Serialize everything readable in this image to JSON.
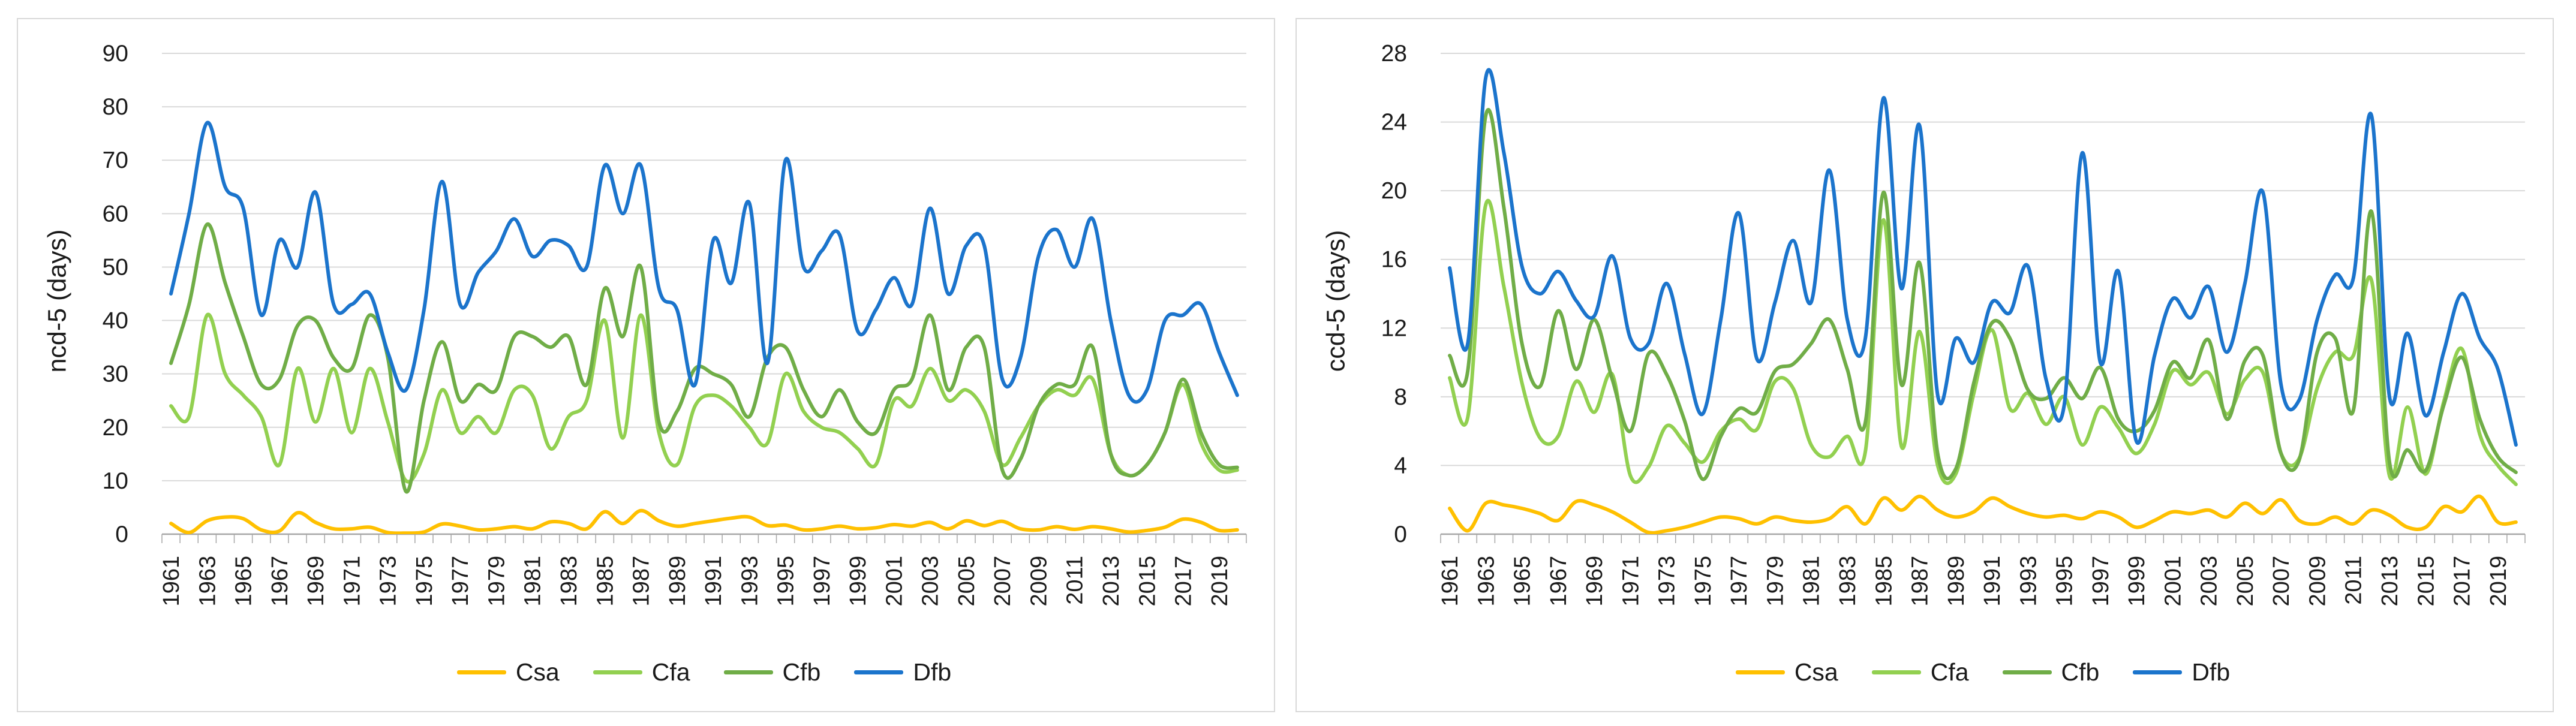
{
  "figure": {
    "background": "#ffffff",
    "panel_border_color": "#d9d9d9"
  },
  "style": {
    "grid_color": "#d9d9d9",
    "axis_color": "#a6a6a6",
    "text_color": "#1a1a1a",
    "line_width": 6
  },
  "legend": {
    "position": "bottom",
    "entries": [
      {
        "label": "Csa",
        "color": "#FFC000"
      },
      {
        "label": "Cfa",
        "color": "#92D050"
      },
      {
        "label": "Cfb",
        "color": "#70AD47"
      },
      {
        "label": "Dfb",
        "color": "#1B74CC"
      }
    ]
  },
  "chart_data": [
    {
      "type": "line",
      "smoothed": true,
      "title": "",
      "y_label": "ncd-5 (days)",
      "xlabel": "",
      "ylim": [
        0,
        90
      ],
      "ytick_step": 10,
      "x_tick_label_step": 2,
      "grid": true,
      "years": [
        1961,
        1962,
        1963,
        1964,
        1965,
        1966,
        1967,
        1968,
        1969,
        1970,
        1971,
        1972,
        1973,
        1974,
        1975,
        1976,
        1977,
        1978,
        1979,
        1980,
        1981,
        1982,
        1983,
        1984,
        1985,
        1986,
        1987,
        1988,
        1989,
        1990,
        1991,
        1992,
        1993,
        1994,
        1995,
        1996,
        1997,
        1998,
        1999,
        2000,
        2001,
        2002,
        2003,
        2004,
        2005,
        2006,
        2007,
        2008,
        2009,
        2010,
        2011,
        2012,
        2013,
        2014,
        2015,
        2016,
        2017,
        2018,
        2019,
        2020
      ],
      "series": [
        {
          "name": "Csa",
          "color": "#FFC000",
          "values": [
            2,
            0.3,
            2.5,
            3.2,
            2.9,
            0.8,
            0.6,
            4,
            2.2,
            1,
            1,
            1.3,
            0.3,
            0.2,
            0.4,
            1.9,
            1.5,
            0.8,
            1,
            1.4,
            1,
            2.3,
            2,
            1,
            4.2,
            2,
            4.4,
            2.5,
            1.5,
            2,
            2.5,
            3,
            3.2,
            1.6,
            1.7,
            0.8,
            1,
            1.5,
            1,
            1.2,
            1.8,
            1.5,
            2.2,
            1,
            2.5,
            1.6,
            2.4,
            1,
            0.8,
            1.4,
            0.9,
            1.4,
            1,
            0.4,
            0.7,
            1.3,
            2.8,
            2.2,
            0.7,
            0.8
          ]
        },
        {
          "name": "Cfa",
          "color": "#92D050",
          "values": [
            24,
            22,
            41,
            30,
            26,
            22,
            13,
            31,
            21,
            31,
            19,
            31,
            21,
            10,
            15,
            27,
            19,
            22,
            19,
            27,
            26,
            16,
            22,
            25,
            40,
            18,
            41,
            19,
            13,
            24,
            26,
            24,
            20,
            17,
            30,
            23,
            20,
            19,
            16,
            13,
            25,
            24,
            31,
            25,
            27,
            23,
            13,
            18,
            24,
            27,
            26,
            29,
            15,
            11,
            13,
            19,
            28,
            17,
            12,
            12
          ]
        },
        {
          "name": "Cfb",
          "color": "#70AD47",
          "values": [
            32,
            43,
            58,
            47,
            37,
            28,
            29,
            39,
            40,
            33,
            31,
            41,
            33,
            8,
            25,
            36,
            25,
            28,
            27,
            37,
            37,
            35,
            37,
            28,
            46,
            37,
            50,
            21,
            23,
            31,
            30,
            28,
            22,
            33,
            35,
            27,
            22,
            27,
            21,
            19,
            27,
            29,
            41,
            27,
            35,
            35,
            12,
            14,
            24,
            28,
            28,
            35,
            15,
            11,
            13,
            19,
            29,
            19,
            13,
            12.5
          ]
        },
        {
          "name": "Dfb",
          "color": "#1B74CC",
          "values": [
            45,
            60,
            77,
            65,
            61,
            41,
            55,
            50,
            64,
            43,
            43,
            45,
            34,
            27,
            42,
            66,
            43,
            49,
            53,
            59,
            52,
            55,
            54,
            50,
            69,
            60,
            69,
            46,
            42,
            28,
            55,
            47,
            62,
            32,
            70,
            50,
            53,
            56,
            38,
            42,
            48,
            43,
            61,
            45,
            54,
            54,
            29,
            33,
            52,
            57,
            50,
            59,
            40,
            26,
            27,
            40,
            41,
            43,
            34,
            26
          ]
        }
      ]
    },
    {
      "type": "line",
      "smoothed": true,
      "title": "",
      "y_label": "ccd-5 (days)",
      "xlabel": "",
      "ylim": [
        0,
        28
      ],
      "ytick_step": 4,
      "x_tick_label_step": 2,
      "grid": true,
      "years": [
        1961,
        1962,
        1963,
        1964,
        1965,
        1966,
        1967,
        1968,
        1969,
        1970,
        1971,
        1972,
        1973,
        1974,
        1975,
        1976,
        1977,
        1978,
        1979,
        1980,
        1981,
        1982,
        1983,
        1984,
        1985,
        1986,
        1987,
        1988,
        1989,
        1990,
        1991,
        1992,
        1993,
        1994,
        1995,
        1996,
        1997,
        1998,
        1999,
        2000,
        2001,
        2002,
        2003,
        2004,
        2005,
        2006,
        2007,
        2008,
        2009,
        2010,
        2011,
        2012,
        2013,
        2014,
        2015,
        2016,
        2017,
        2018,
        2019,
        2020
      ],
      "series": [
        {
          "name": "Csa",
          "color": "#FFC000",
          "values": [
            1.5,
            0.2,
            1.8,
            1.7,
            1.5,
            1.2,
            0.8,
            1.9,
            1.7,
            1.3,
            0.7,
            0.1,
            0.2,
            0.4,
            0.7,
            1,
            0.9,
            0.6,
            1,
            0.8,
            0.7,
            0.9,
            1.6,
            0.6,
            2.1,
            1.4,
            2.2,
            1.4,
            1,
            1.3,
            2.1,
            1.6,
            1.2,
            1,
            1.1,
            0.9,
            1.3,
            1,
            0.4,
            0.8,
            1.3,
            1.2,
            1.4,
            1,
            1.8,
            1.2,
            2,
            0.8,
            0.6,
            1,
            0.6,
            1.4,
            1.1,
            0.4,
            0.4,
            1.6,
            1.3,
            2.2,
            0.7,
            0.7
          ]
        },
        {
          "name": "Cfa",
          "color": "#92D050",
          "values": [
            9.1,
            6.8,
            19.2,
            14.4,
            8.8,
            5.6,
            5.7,
            8.9,
            7.1,
            9.3,
            3.4,
            3.9,
            6.3,
            5.3,
            4.2,
            6,
            6.7,
            6.1,
            8.9,
            8.5,
            5.2,
            4.5,
            5.7,
            4.8,
            18.3,
            5.1,
            11.8,
            4,
            3.5,
            8.2,
            11.9,
            7.3,
            8.2,
            6.4,
            8,
            5.2,
            7.4,
            6.2,
            4.7,
            6.4,
            9.5,
            8.7,
            9.4,
            7,
            9,
            9.4,
            4.7,
            4.4,
            8.5,
            10.6,
            10.4,
            14.8,
            3.4,
            7.4,
            3.5,
            7.7,
            10.8,
            5.8,
            4,
            2.9
          ]
        },
        {
          "name": "Cfb",
          "color": "#70AD47",
          "values": [
            10.4,
            9.5,
            24.4,
            19,
            11.1,
            8.6,
            13,
            9.6,
            12.5,
            9,
            6,
            10.5,
            9.3,
            6.6,
            3.2,
            5.7,
            7.3,
            7.1,
            9.5,
            9.9,
            11.1,
            12.5,
            9.6,
            6.5,
            19.9,
            8.7,
            15.8,
            4.7,
            3.8,
            8.8,
            12.3,
            11.4,
            8.4,
            7.9,
            9.1,
            7.9,
            9.7,
            6.7,
            6,
            7.2,
            10,
            9.1,
            11.3,
            6.7,
            10.1,
            10.4,
            4.7,
            4.3,
            10.6,
            11.4,
            7.2,
            18.8,
            4.2,
            4.9,
            3.7,
            7.5,
            10.3,
            6.7,
            4.5,
            3.6
          ]
        },
        {
          "name": "Dfb",
          "color": "#1B74CC",
          "values": [
            15.5,
            11.1,
            26.6,
            22.2,
            15.6,
            14,
            15.3,
            13.6,
            12.7,
            16.2,
            11.4,
            11.1,
            14.6,
            10.5,
            7,
            12.5,
            18.7,
            10.2,
            13.5,
            17.1,
            13.5,
            21.2,
            12.5,
            11.4,
            25.4,
            14.3,
            23.8,
            8.1,
            11.4,
            10,
            13.5,
            12.9,
            15.6,
            9,
            7.5,
            22.2,
            10,
            15.3,
            5.4,
            10.4,
            13.7,
            12.6,
            14.4,
            10.6,
            14.6,
            19.9,
            8.7,
            7.8,
            12.5,
            15.1,
            14.9,
            24.4,
            8,
            11.7,
            6.9,
            10.6,
            14,
            11.4,
            9.6,
            5.2
          ]
        }
      ]
    }
  ]
}
